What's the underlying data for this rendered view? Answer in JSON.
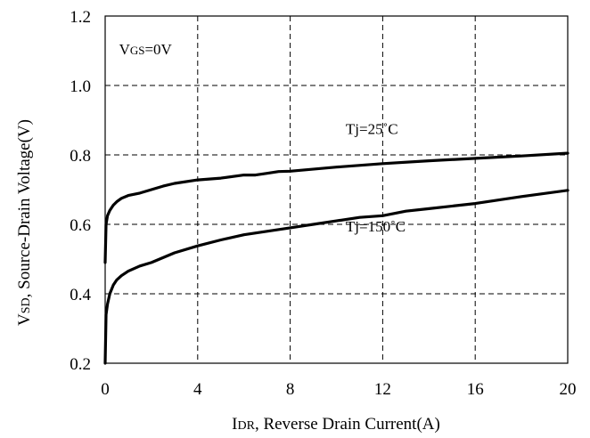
{
  "chart_data": {
    "type": "line",
    "xlabel": {
      "prefix": "I",
      "sub": "DR",
      "rest": ", Reverse Drain Current(A)"
    },
    "ylabel": {
      "prefix": "V",
      "sub": "SD",
      "rest": ", Source-Drain Voltage(V)"
    },
    "xlim": [
      0,
      20
    ],
    "ylim": [
      0.2,
      1.2
    ],
    "x_ticks": [
      0,
      4,
      8,
      12,
      16,
      20
    ],
    "y_ticks": [
      0.2,
      0.4,
      0.6,
      0.8,
      1.0,
      1.2
    ],
    "x_tick_labels": [
      "0",
      "4",
      "8",
      "12",
      "16",
      "20"
    ],
    "y_tick_labels": [
      "0.2",
      "0.4",
      "0.6",
      "0.8",
      "1.0",
      "1.2"
    ],
    "grid": true,
    "annotations": {
      "vgs": {
        "prefix": "V",
        "sub": "GS",
        "rest": "=0V",
        "x": 0.6,
        "y": 1.09
      },
      "tj25": {
        "text": "Tj=25˚C",
        "x": 10.4,
        "y": 0.86
      },
      "tj150": {
        "text": "Tj=150˚C",
        "x": 10.4,
        "y": 0.58
      }
    },
    "series": [
      {
        "x": [
          0.0,
          0.04,
          0.1,
          0.2,
          0.35,
          0.5,
          0.7,
          1.0,
          1.5,
          2.0,
          2.5,
          3.0,
          4.0,
          5.0,
          6.0,
          6.5,
          7.0,
          7.5,
          8.0,
          10.0,
          12.0,
          14.0,
          16.0,
          18.0,
          20.0
        ],
        "y": [
          0.49,
          0.6,
          0.625,
          0.64,
          0.655,
          0.665,
          0.675,
          0.683,
          0.69,
          0.7,
          0.71,
          0.718,
          0.728,
          0.733,
          0.742,
          0.742,
          0.747,
          0.752,
          0.753,
          0.765,
          0.775,
          0.783,
          0.79,
          0.797,
          0.805
        ]
      },
      {
        "x": [
          0.0,
          0.04,
          0.1,
          0.2,
          0.35,
          0.5,
          0.7,
          1.0,
          1.5,
          2.0,
          3.0,
          4.0,
          5.0,
          6.0,
          7.0,
          8.0,
          9.0,
          10.0,
          11.0,
          12.0,
          13.0,
          14.0,
          16.0,
          18.0,
          20.0
        ],
        "y": [
          0.2,
          0.34,
          0.37,
          0.4,
          0.425,
          0.44,
          0.452,
          0.465,
          0.48,
          0.49,
          0.518,
          0.538,
          0.555,
          0.57,
          0.58,
          0.59,
          0.6,
          0.61,
          0.62,
          0.625,
          0.638,
          0.645,
          0.66,
          0.68,
          0.698
        ]
      }
    ]
  }
}
